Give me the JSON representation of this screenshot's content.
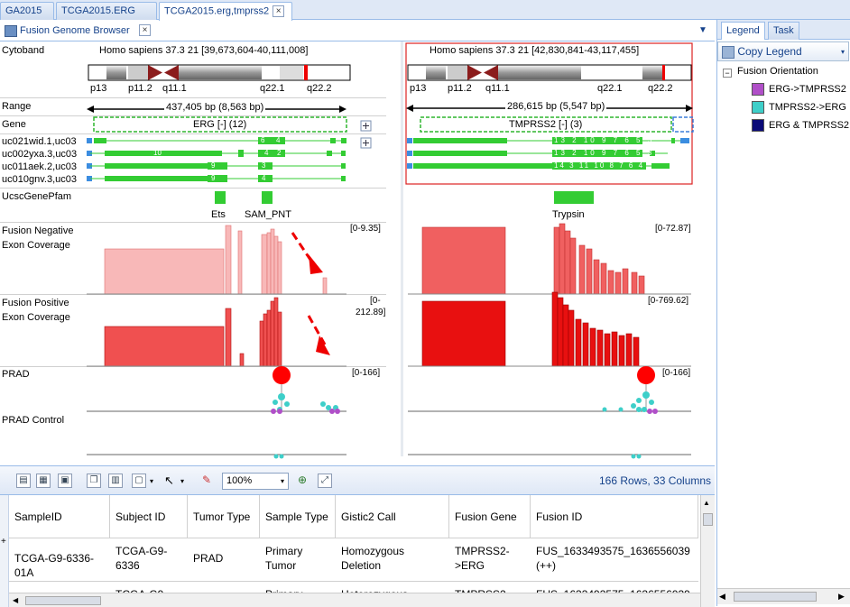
{
  "tabs": [
    "GA2015",
    "TCGA2015.ERG",
    "TCGA2015.erg,tmprss2"
  ],
  "panel_title": "Fusion Genome Browser",
  "right_tabs": [
    "Legend",
    "Task"
  ],
  "copy_legend": "Copy Legend",
  "legend": {
    "title": "Fusion Orientation",
    "items": [
      {
        "label": "ERG->TMPRSS2",
        "color": "#b04fc8"
      },
      {
        "label": "TMPRSS2->ERG",
        "color": "#3ecfc9"
      },
      {
        "label": "ERG & TMPRSS2",
        "color": "#0a0a78"
      }
    ]
  },
  "tracks": {
    "cytoband": "Cytoband",
    "range": "Range",
    "gene": "Gene",
    "transcripts": [
      "uc021wid.1,uc03",
      "uc002yxa.3,uc03",
      "uc011aek.2,uc03",
      "uc010gnv.3,uc03"
    ],
    "pfam": "UcscGenePfam",
    "neg1": "Fusion Negative",
    "neg2": "Exon Coverage",
    "pos1": "Fusion Positive",
    "pos2": "Exon Coverage",
    "prad": "PRAD",
    "prad_control": "PRAD Control"
  },
  "left": {
    "locus": "Homo sapiens 37.3 21 [39,673,604-40,111,008]",
    "bands": [
      "p13",
      "p11.2",
      "q11.1",
      "q22.1",
      "q22.2"
    ],
    "range": "437,405 bp (8,563 bp)",
    "gene": "ERG [-] (12)",
    "domains": [
      "Ets",
      "SAM_PNT"
    ],
    "neg_scale": "[0-9.35]",
    "pos_scale1": "[0-",
    "pos_scale2": "212.89]",
    "prad_scale": "[0-166]"
  },
  "right": {
    "locus": "Homo sapiens 37.3 21 [42,830,841-43,117,455]",
    "bands": [
      "p13",
      "p11.2",
      "q11.1",
      "q22.1",
      "q22.2"
    ],
    "range": "286,615 bp (5,547 bp)",
    "gene": "TMPRSS2 [-] (3)",
    "domains": [
      "Trypsin"
    ],
    "neg_scale": "[0-72.87]",
    "pos_scale": "[0-769.62]",
    "prad_scale": "[0-166]"
  },
  "exon_labels": {
    "l0": [
      "6",
      "4"
    ],
    "l1": [
      "10",
      "4",
      "2"
    ],
    "l2": [
      "9",
      "3"
    ],
    "l3": [
      "9",
      "4"
    ],
    "r0": [
      "13",
      "2",
      "10",
      "9",
      "7",
      "6",
      "5",
      "3"
    ],
    "r1": [
      "13",
      "2",
      "10",
      "9",
      "7",
      "6",
      "5",
      "3"
    ],
    "r2": [
      "14",
      "3",
      "11",
      "10",
      "8",
      "7",
      "6",
      "4"
    ]
  },
  "toolbar": {
    "zoom": "100%",
    "rows": "166 Rows, 33 Columns"
  },
  "grid": {
    "columns": [
      "SampleID",
      "Subject ID",
      "Tumor  Type",
      "Sample  Type",
      "Gistic2  Call",
      "Fusion Gene",
      "Fusion ID"
    ],
    "row1": [
      "TCGA-G9-6336-01A",
      "TCGA-G9-6336",
      "PRAD",
      "Primary Tumor",
      "Homozygous Deletion",
      "TMPRSS2->ERG",
      "FUS_1633493575_1636556039 (++)"
    ],
    "row2": [
      "TCGA-G9",
      "TCGA-G9",
      "PRAD",
      "Primary",
      "Heterozygous",
      "TMPRSS2",
      "FUS_1633493575_1636556039"
    ]
  }
}
